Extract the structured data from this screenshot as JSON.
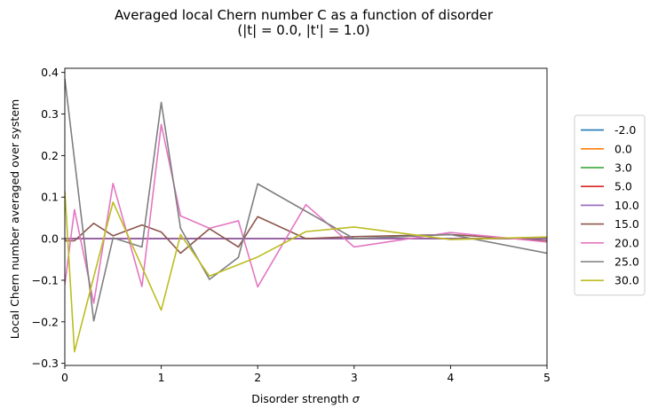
{
  "chart_data": {
    "type": "line",
    "title": "Averaged local Chern number C as a function of disorder",
    "subtitle": "(|t| = 0.0, |t'| = 1.0)",
    "xlabel_prefix": "Disorder strength ",
    "xlabel_symbol": "σ",
    "ylabel": "Local Chern number averaged over system",
    "xlim": [
      0,
      5
    ],
    "ylim": [
      -0.305,
      0.41
    ],
    "xticks": [
      0,
      1,
      2,
      3,
      4,
      5
    ],
    "xtick_labels": [
      "0",
      "1",
      "2",
      "3",
      "4",
      "5"
    ],
    "yticks": [
      -0.3,
      -0.2,
      -0.1,
      0.0,
      0.1,
      0.2,
      0.3,
      0.4
    ],
    "ytick_labels": [
      "−0.3",
      "−0.2",
      "−0.1",
      "0.0",
      "0.1",
      "0.2",
      "0.3",
      "0.4"
    ],
    "grid": false,
    "legend_position": "right, outside plot",
    "series": [
      {
        "name": "-2.0",
        "color": "#1f77b4",
        "x": [
          0,
          5
        ],
        "y": [
          0.0,
          0.0
        ]
      },
      {
        "name": "0.0",
        "color": "#ff7f0e",
        "x": [
          0,
          5
        ],
        "y": [
          0.0,
          0.0
        ]
      },
      {
        "name": "3.0",
        "color": "#2ca02c",
        "x": [
          0,
          5
        ],
        "y": [
          0.0,
          0.0
        ]
      },
      {
        "name": "5.0",
        "color": "#d62728",
        "x": [
          0,
          5
        ],
        "y": [
          0.0,
          0.0
        ]
      },
      {
        "name": "10.0",
        "color": "#9467bd",
        "x": [
          0,
          0.5,
          1,
          1.5,
          2,
          2.5,
          3,
          3.5,
          4,
          4.5,
          5
        ],
        "y": [
          0.0,
          0.0,
          0.0,
          0.0,
          0.0,
          0.0,
          0.0,
          0.0,
          0.0,
          0.0,
          0.0
        ]
      },
      {
        "name": "15.0",
        "color": "#8c564b",
        "x": [
          0,
          0.1,
          0.3,
          0.5,
          0.8,
          1,
          1.2,
          1.5,
          1.8,
          2,
          2.5,
          3,
          4,
          5
        ],
        "y": [
          -0.005,
          -0.005,
          0.037,
          0.007,
          0.033,
          0.016,
          -0.035,
          0.024,
          -0.02,
          0.053,
          0.0,
          0.005,
          0.01,
          -0.005
        ]
      },
      {
        "name": "20.0",
        "color": "#e377c2",
        "x": [
          0,
          0.1,
          0.3,
          0.5,
          0.8,
          1,
          1.2,
          1.5,
          1.8,
          2,
          2.5,
          3,
          4,
          5
        ],
        "y": [
          -0.11,
          0.07,
          -0.155,
          0.133,
          -0.115,
          0.275,
          0.055,
          0.025,
          0.043,
          -0.116,
          0.082,
          -0.02,
          0.015,
          -0.008
        ]
      },
      {
        "name": "25.0",
        "color": "#7f7f7f",
        "x": [
          0,
          0.3,
          0.5,
          0.8,
          1,
          1.2,
          1.5,
          1.8,
          2,
          3,
          4,
          5
        ],
        "y": [
          0.385,
          -0.198,
          0.002,
          -0.02,
          0.328,
          0.025,
          -0.098,
          -0.045,
          0.132,
          0.0,
          0.01,
          -0.035
        ]
      },
      {
        "name": "30.0",
        "color": "#bcbd22",
        "x": [
          0,
          0.1,
          0.5,
          1,
          1.2,
          1.5,
          2,
          2.5,
          3,
          4,
          5
        ],
        "y": [
          0.115,
          -0.272,
          0.088,
          -0.172,
          0.01,
          -0.09,
          -0.044,
          0.017,
          0.028,
          -0.002,
          0.004
        ]
      }
    ]
  }
}
